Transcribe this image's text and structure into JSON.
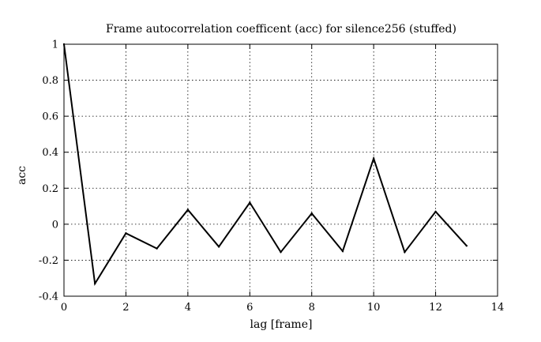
{
  "chart_data": {
    "type": "line",
    "title": "Frame autocorrelation coefficent (acc) for silence256 (stuffed)",
    "xlabel": "lag [frame]",
    "ylabel": "acc",
    "xlim": [
      0,
      14
    ],
    "ylim": [
      -0.4,
      1
    ],
    "xticks": [
      0,
      2,
      4,
      6,
      8,
      10,
      12,
      14
    ],
    "xtick_labels": [
      "0",
      "2",
      "4",
      "6",
      "8",
      "10",
      "12",
      "14"
    ],
    "yticks": [
      -0.4,
      -0.2,
      0,
      0.2,
      0.4,
      0.6,
      0.8,
      1
    ],
    "ytick_labels": [
      "-0.4",
      "-0.2",
      "0",
      "0.2",
      "0.4",
      "0.6",
      "0.8",
      "1"
    ],
    "grid": true,
    "series": [
      {
        "color": "#000000",
        "x": [
          0,
          1,
          2,
          3,
          4,
          5,
          6,
          7,
          8,
          9,
          10,
          11,
          12,
          13
        ],
        "y": [
          1.0,
          -0.33,
          -0.05,
          -0.135,
          0.08,
          -0.125,
          0.12,
          -0.155,
          0.06,
          -0.15,
          0.365,
          -0.155,
          0.07,
          -0.12
        ]
      }
    ]
  }
}
